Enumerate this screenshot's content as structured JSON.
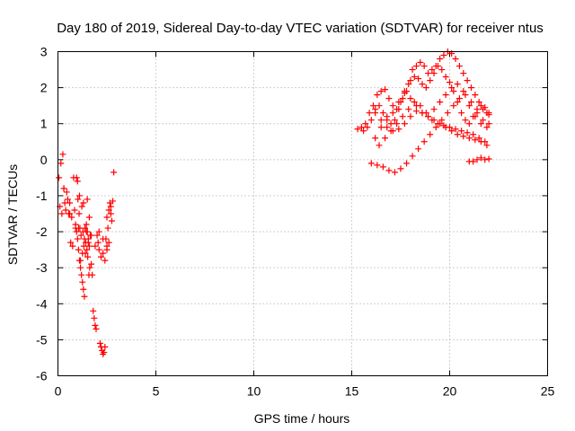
{
  "chart_data": {
    "type": "scatter",
    "title": "Day 180 of 2019, Sidereal Day-to-day VTEC variation (SDTVAR) for receiver ntus",
    "xlabel": "GPS time / hours",
    "ylabel": "SDTVAR / TECUs",
    "xlim": [
      0,
      25
    ],
    "ylim": [
      -6,
      3
    ],
    "xticks": [
      "0",
      "5",
      "10",
      "15",
      "20",
      "25"
    ],
    "yticks": [
      "-6",
      "-5",
      "-4",
      "-3",
      "-2",
      "-1",
      "0",
      "1",
      "2",
      "3"
    ],
    "grid": true,
    "marker": "plus",
    "color": "#ff0000",
    "series": [
      {
        "name": "SDTVAR",
        "x": [
          0.05,
          0.1,
          0.15,
          0.2,
          0.25,
          0.3,
          0.35,
          0.4,
          0.45,
          0.5,
          0.55,
          0.6,
          0.65,
          0.7,
          0.75,
          0.8,
          0.85,
          0.9,
          0.95,
          1.0,
          1.02,
          1.05,
          1.08,
          1.1,
          1.12,
          1.15,
          1.18,
          1.2,
          1.22,
          1.25,
          1.28,
          1.3,
          1.32,
          1.35,
          1.38,
          1.4,
          1.42,
          1.45,
          1.48,
          1.5,
          1.52,
          1.55,
          1.58,
          1.6,
          1.62,
          1.65,
          1.7,
          1.75,
          1.8,
          1.85,
          1.9,
          1.95,
          2.0,
          2.05,
          2.1,
          2.15,
          2.2,
          2.25,
          2.3,
          2.35,
          2.4,
          2.45,
          2.5,
          2.55,
          2.6,
          2.65,
          2.7,
          2.75,
          2.8,
          2.85,
          0.3,
          0.6,
          0.9,
          1.1,
          1.3,
          1.5,
          1.7,
          1.9,
          2.1,
          2.3,
          2.5,
          2.7,
          1.15,
          1.25,
          1.35,
          1.45,
          1.55,
          1.6,
          1.05,
          1.0,
          0.95,
          2.2,
          2.3,
          2.4,
          2.5,
          2.6,
          15.3,
          15.5,
          15.7,
          15.9,
          16.1,
          16.3,
          16.5,
          16.7,
          16.9,
          17.1,
          17.3,
          17.5,
          17.7,
          17.9,
          18.1,
          18.3,
          18.5,
          18.7,
          18.9,
          19.1,
          19.3,
          19.5,
          19.7,
          19.9,
          20.1,
          20.3,
          20.5,
          20.7,
          20.9,
          21.1,
          21.3,
          21.5,
          21.7,
          21.9,
          22.0,
          15.6,
          15.8,
          16.0,
          16.2,
          16.4,
          16.6,
          16.8,
          17.0,
          17.2,
          17.4,
          17.6,
          17.8,
          18.0,
          18.2,
          18.4,
          18.6,
          18.8,
          19.0,
          19.2,
          19.4,
          19.6,
          19.8,
          20.0,
          20.2,
          20.4,
          20.6,
          20.8,
          21.0,
          21.2,
          21.4,
          21.6,
          21.8,
          22.0,
          16.0,
          16.3,
          16.6,
          16.9,
          17.2,
          17.5,
          17.8,
          18.1,
          18.4,
          18.7,
          19.0,
          19.3,
          19.6,
          19.9,
          20.2,
          20.5,
          20.8,
          21.1,
          21.4,
          21.7,
          22.0,
          16.2,
          16.5,
          16.8,
          17.1,
          17.4,
          17.7,
          18.0,
          18.3,
          18.6,
          18.9,
          19.2,
          19.5,
          19.8,
          20.1,
          20.4,
          20.7,
          21.0,
          21.3,
          21.6,
          21.9,
          16.4,
          16.7,
          17.0,
          17.3,
          17.6,
          17.9,
          18.2,
          18.5,
          18.8,
          19.1,
          19.4,
          19.7,
          20.0,
          20.3,
          20.6,
          20.9,
          21.2,
          21.5,
          21.8,
          16.2,
          16.5,
          16.8,
          17.1,
          17.4,
          17.7,
          18.0,
          18.3,
          18.6,
          18.9,
          19.2,
          19.5,
          19.8,
          20.1,
          20.4,
          20.7,
          21.0,
          21.3,
          21.6,
          21.9,
          21.0,
          21.2,
          21.4,
          21.6,
          21.8,
          22.0
        ],
        "y": [
          -0.5,
          -1.3,
          -0.1,
          -1.5,
          0.15,
          -0.8,
          -1.2,
          -1.4,
          -0.9,
          -1.1,
          -1.5,
          -1.2,
          -2.3,
          -1.6,
          -2.4,
          -0.5,
          -1.4,
          -1.8,
          -2.0,
          -2.2,
          -1.1,
          -2.5,
          -1.5,
          -2.8,
          -1.9,
          -3.0,
          -2.1,
          -3.2,
          -1.3,
          -3.4,
          -2.0,
          -3.6,
          -2.4,
          -3.8,
          -1.9,
          -2.6,
          -2.3,
          -1.8,
          -2.5,
          -2.0,
          -2.7,
          -2.2,
          -3.2,
          -2.4,
          -3.0,
          -2.1,
          -2.9,
          -3.2,
          -4.2,
          -4.4,
          -4.6,
          -4.7,
          -2.1,
          -2.3,
          -2.0,
          -5.1,
          -5.2,
          -5.3,
          -5.4,
          -5.35,
          -5.2,
          -2.2,
          -2.4,
          -1.9,
          -1.4,
          -1.2,
          -1.5,
          -1.7,
          -1.15,
          -0.35,
          -0.8,
          -1.5,
          -1.9,
          -1.0,
          -1.2,
          -1.1,
          -2.1,
          -2.4,
          -2.5,
          -2.2,
          -1.6,
          -1.3,
          -2.8,
          -2.6,
          -2.2,
          -2.0,
          -2.3,
          -1.6,
          -1.9,
          -0.6,
          -0.5,
          -2.7,
          -2.6,
          -2.8,
          -2.5,
          -2.3,
          0.85,
          0.9,
          1.0,
          1.3,
          1.5,
          1.8,
          1.9,
          1.95,
          1.7,
          1.5,
          1.4,
          1.6,
          1.9,
          2.1,
          2.5,
          2.6,
          2.7,
          2.6,
          2.4,
          2.5,
          2.6,
          2.8,
          2.9,
          3.0,
          2.95,
          2.8,
          2.6,
          2.4,
          2.2,
          2.0,
          1.8,
          1.6,
          1.4,
          1.3,
          1.25,
          0.8,
          0.9,
          1.1,
          1.4,
          1.5,
          1.3,
          1.2,
          1.0,
          1.1,
          1.4,
          1.7,
          1.9,
          2.2,
          2.3,
          2.25,
          2.1,
          2.0,
          2.2,
          2.4,
          2.6,
          2.5,
          2.3,
          2.15,
          1.9,
          1.6,
          1.3,
          1.1,
          1.0,
          1.2,
          1.4,
          1.5,
          1.45,
          1.3,
          -0.1,
          -0.15,
          -0.2,
          -0.3,
          -0.35,
          -0.25,
          -0.1,
          0.1,
          0.3,
          0.5,
          0.7,
          0.9,
          1.1,
          1.3,
          1.5,
          1.7,
          1.8,
          1.6,
          1.3,
          1.1,
          1.0,
          0.6,
          0.9,
          1.1,
          1.3,
          1.6,
          1.85,
          1.7,
          1.5,
          1.3,
          1.2,
          1.4,
          1.6,
          1.8,
          2.0,
          2.1,
          1.9,
          1.5,
          1.2,
          1.0,
          0.9,
          0.4,
          0.6,
          0.8,
          1.0,
          1.2,
          1.4,
          1.6,
          1.5,
          1.3,
          1.1,
          1.0,
          0.95,
          0.9,
          0.85,
          0.8,
          0.75,
          0.7,
          0.6,
          0.5,
          1.3,
          1.1,
          0.9,
          0.8,
          0.85,
          1.0,
          1.2,
          1.35,
          1.3,
          1.2,
          1.1,
          1.0,
          0.9,
          0.8,
          0.7,
          0.65,
          0.6,
          0.55,
          0.5,
          0.4,
          -0.05,
          -0.05,
          0.0,
          0.05,
          0.0,
          0.02
        ]
      }
    ]
  }
}
